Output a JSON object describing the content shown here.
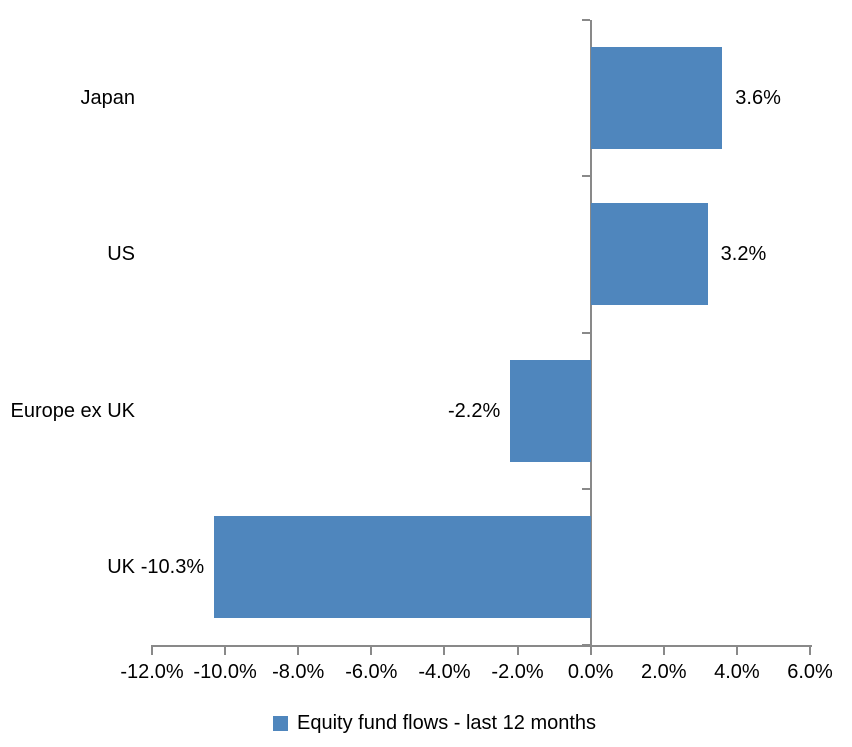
{
  "chart_data": {
    "type": "bar",
    "orientation": "horizontal",
    "title": "",
    "categories": [
      "Japan",
      "US",
      "Europe ex UK",
      "UK"
    ],
    "values": [
      3.6,
      3.2,
      -2.2,
      -10.3
    ],
    "value_labels": [
      "3.6%",
      "3.2%",
      "-2.2%",
      "-10.3%"
    ],
    "xlim": [
      -12,
      6
    ],
    "x_ticks": [
      -12,
      -10,
      -8,
      -6,
      -4,
      -2,
      0,
      2,
      4,
      6
    ],
    "x_tick_labels": [
      "-12.0%",
      "-10.0%",
      "-8.0%",
      "-6.0%",
      "-4.0%",
      "-2.0%",
      "0.0%",
      "2.0%",
      "4.0%",
      "6.0%"
    ],
    "grid": false,
    "legend": {
      "position": "bottom",
      "label": "Equity fund flows - last 12 months"
    },
    "colors": {
      "bar": "#4F86BD",
      "axis": "#898989",
      "text": "#000000",
      "background": "#FFFFFF"
    }
  }
}
